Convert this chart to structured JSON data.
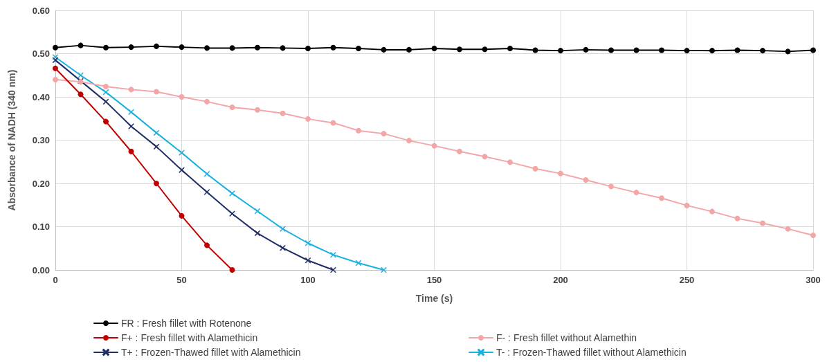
{
  "chart_data": {
    "type": "line",
    "xlabel": "Time (s)",
    "ylabel": "Absorbance of NADH (340 nm)",
    "xlim": [
      0,
      300
    ],
    "xticks": [
      0,
      50,
      100,
      150,
      200,
      250,
      300
    ],
    "ylim": [
      0,
      0.6
    ],
    "yticks": [
      {
        "value": 0,
        "label": "0.00"
      },
      {
        "value": 0.1,
        "label": "0.10"
      },
      {
        "value": 0.2,
        "label": "0.20"
      },
      {
        "value": 0.3,
        "label": "0.30"
      },
      {
        "value": 0.4,
        "label": "0.40"
      },
      {
        "value": 0.5,
        "label": "0.50"
      },
      {
        "value": 0.6,
        "label": "0.60"
      }
    ],
    "grid": true,
    "legend": "bottom",
    "line_style": "solid",
    "series": [
      {
        "name": "FR : Fresh fillet with Rotenone",
        "color": "#000000",
        "marker": "circle",
        "x": [
          0,
          10,
          20,
          30,
          40,
          50,
          60,
          70,
          80,
          90,
          100,
          110,
          120,
          130,
          140,
          150,
          160,
          170,
          180,
          190,
          200,
          210,
          220,
          230,
          240,
          250,
          260,
          270,
          280,
          290,
          300
        ],
        "values": [
          0.514,
          0.519,
          0.514,
          0.515,
          0.517,
          0.515,
          0.513,
          0.513,
          0.514,
          0.513,
          0.512,
          0.514,
          0.512,
          0.509,
          0.509,
          0.512,
          0.51,
          0.51,
          0.512,
          0.508,
          0.507,
          0.509,
          0.508,
          0.508,
          0.508,
          0.507,
          0.507,
          0.508,
          0.507,
          0.505,
          0.508
        ]
      },
      {
        "name": "F- : Fresh fillet without Alamethin",
        "color": "#f4a6a6",
        "marker": "circle",
        "x": [
          0,
          10,
          20,
          30,
          40,
          50,
          60,
          70,
          80,
          90,
          100,
          110,
          120,
          130,
          140,
          150,
          160,
          170,
          180,
          190,
          200,
          210,
          220,
          230,
          240,
          250,
          260,
          270,
          280,
          290,
          300
        ],
        "values": [
          0.44,
          0.435,
          0.424,
          0.417,
          0.412,
          0.4,
          0.389,
          0.376,
          0.37,
          0.362,
          0.349,
          0.34,
          0.322,
          0.315,
          0.299,
          0.287,
          0.274,
          0.262,
          0.249,
          0.234,
          0.223,
          0.208,
          0.193,
          0.179,
          0.166,
          0.149,
          0.135,
          0.119,
          0.108,
          0.095,
          0.08
        ]
      },
      {
        "name": "F+ : Fresh fillet with Alamethicin",
        "color": "#c00000",
        "marker": "circle",
        "x": [
          0,
          10,
          20,
          30,
          40,
          50,
          60,
          70
        ],
        "values": [
          0.466,
          0.406,
          0.343,
          0.274,
          0.2,
          0.125,
          0.057,
          0.0
        ]
      },
      {
        "name": "T- : Frozen-Thawed fillet without Alamethicin",
        "color": "#1ab0e0",
        "marker": "cross",
        "x": [
          0,
          10,
          20,
          30,
          40,
          50,
          60,
          70,
          80,
          90,
          100,
          110,
          120,
          130
        ],
        "values": [
          0.492,
          0.45,
          0.411,
          0.365,
          0.317,
          0.271,
          0.222,
          0.177,
          0.136,
          0.095,
          0.062,
          0.035,
          0.016,
          0.0
        ]
      },
      {
        "name": "T+ : Frozen-Thawed fillet with Alamethicin",
        "color": "#1f2d66",
        "marker": "cross",
        "x": [
          0,
          10,
          20,
          30,
          40,
          50,
          60,
          70,
          80,
          90,
          100,
          110
        ],
        "values": [
          0.485,
          0.437,
          0.389,
          0.332,
          0.285,
          0.231,
          0.18,
          0.13,
          0.085,
          0.051,
          0.022,
          0.0
        ]
      }
    ]
  }
}
